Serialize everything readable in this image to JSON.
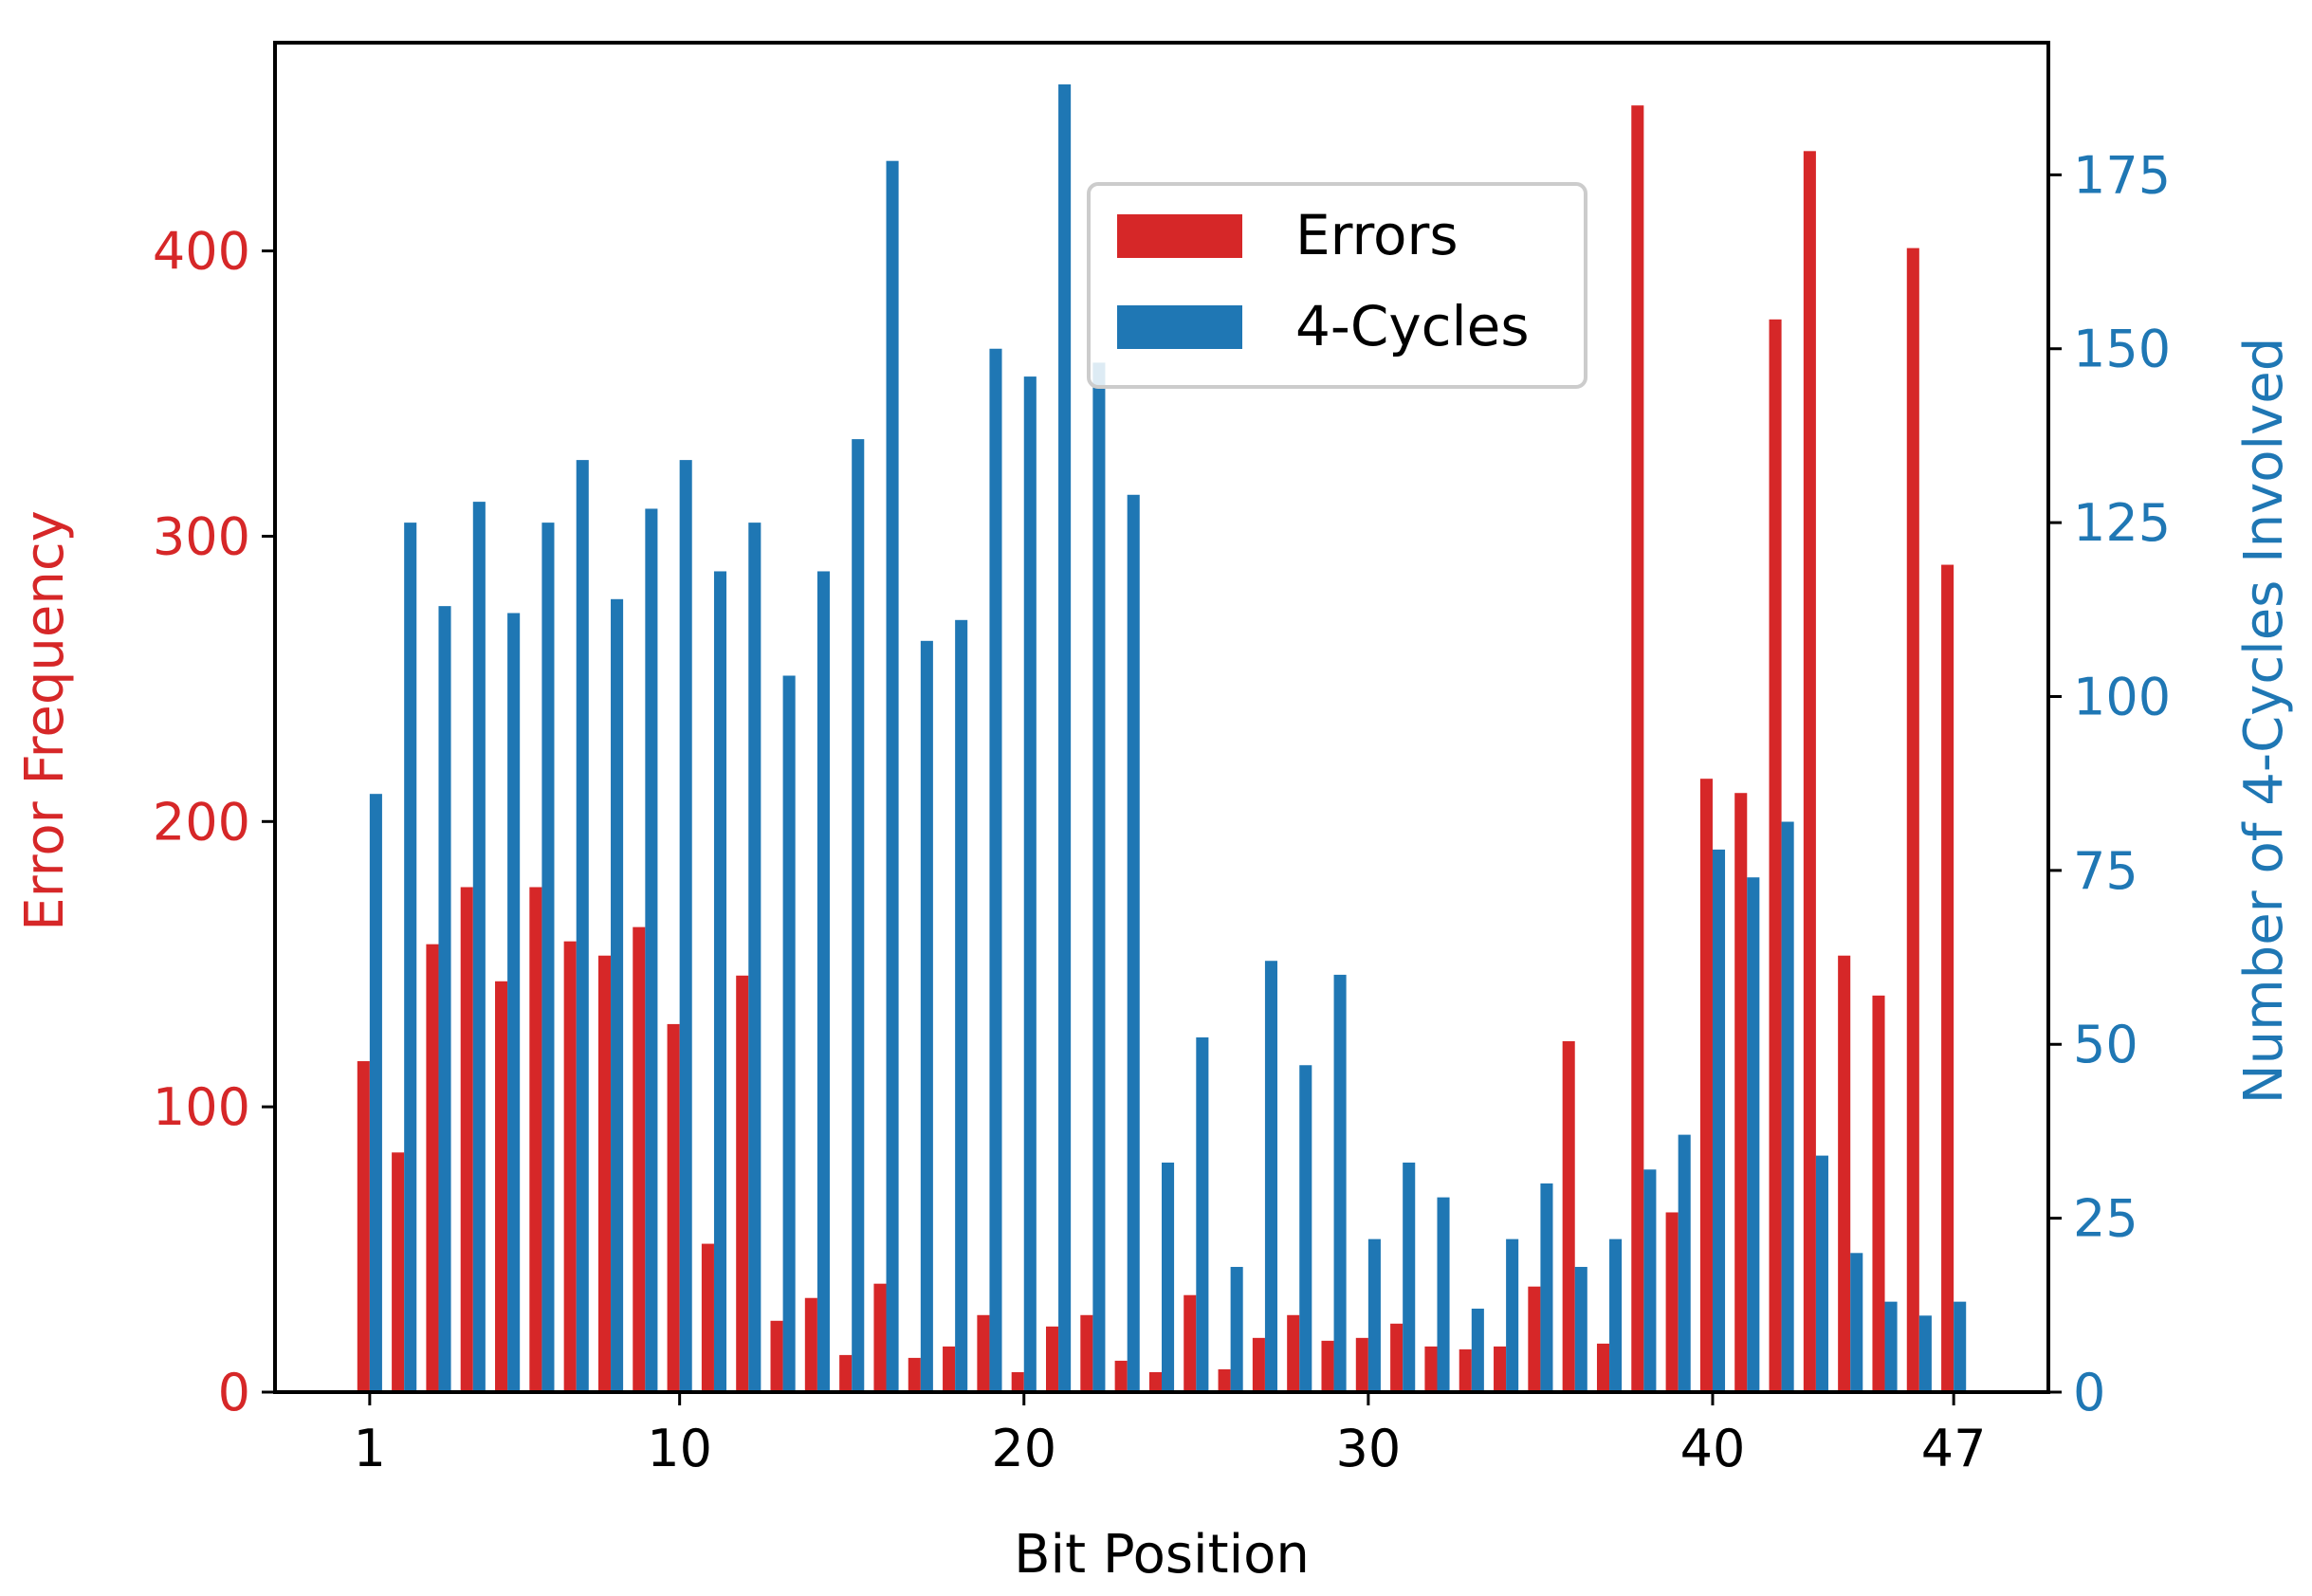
{
  "chart_data": {
    "type": "bar",
    "title": "",
    "xlabel": "Bit Position",
    "ylabel_left": "Error Frequency",
    "ylabel_right": "Number of 4-Cycles Involved",
    "x": [
      1,
      2,
      3,
      4,
      5,
      6,
      7,
      8,
      9,
      10,
      11,
      12,
      13,
      14,
      15,
      16,
      17,
      18,
      19,
      20,
      21,
      22,
      23,
      24,
      25,
      26,
      27,
      28,
      29,
      30,
      31,
      32,
      33,
      34,
      35,
      36,
      37,
      38,
      39,
      40,
      41,
      42,
      43,
      44,
      45,
      46,
      47
    ],
    "x_ticks": [
      1,
      10,
      20,
      30,
      40,
      47
    ],
    "x_tick_labels": [
      "1",
      "10",
      "20",
      "30",
      "40",
      "47"
    ],
    "xlim": [
      -1.75,
      49.75
    ],
    "series": [
      {
        "name": "Errors",
        "axis": "left",
        "color": "#d62728",
        "values": [
          116,
          84,
          157,
          177,
          144,
          177,
          158,
          153,
          163,
          129,
          52,
          146,
          25,
          33,
          13,
          38,
          12,
          16,
          27,
          7,
          23,
          27,
          11,
          7,
          34,
          8,
          19,
          27,
          18,
          19,
          24,
          16,
          15,
          16,
          37,
          123,
          17,
          451,
          63,
          215,
          210,
          376,
          435,
          153,
          139,
          401,
          290
        ]
      },
      {
        "name": "4-Cycles",
        "axis": "right",
        "color": "#1f77b4",
        "values": [
          86,
          125,
          113,
          128,
          112,
          125,
          134,
          114,
          127,
          134,
          118,
          125,
          103,
          118,
          137,
          177,
          108,
          111,
          150,
          146,
          188,
          148,
          129,
          33,
          51,
          18,
          62,
          47,
          60,
          22,
          33,
          28,
          12,
          22,
          30,
          18,
          22,
          32,
          37,
          78,
          74,
          82,
          34,
          20,
          13,
          11,
          13
        ]
      }
    ],
    "ylim_left": [
      0,
      473
    ],
    "ylim_right": [
      0,
      194
    ],
    "y_left_ticks": [
      0,
      100,
      200,
      300,
      400
    ],
    "y_right_ticks": [
      0,
      25,
      50,
      75,
      100,
      125,
      150,
      175
    ],
    "legend": [
      "Errors",
      "4-Cycles"
    ],
    "legend_location": "upper center",
    "grid": false,
    "colors": {
      "left_axis": "#d62728",
      "right_axis": "#1f77b4",
      "frame": "#000000"
    }
  }
}
